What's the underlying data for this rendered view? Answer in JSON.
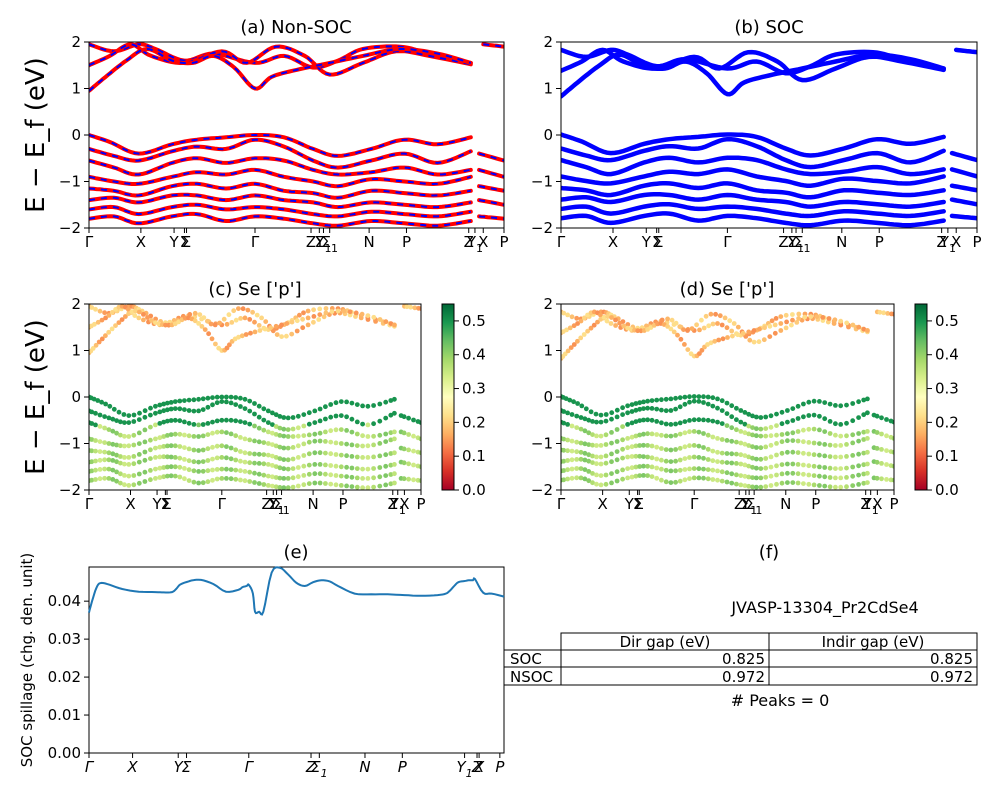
{
  "figure": {
    "ylabel_band": "E − E_f (eV)",
    "ylabel_spillage": "SOC spillage (chg. den. unit)"
  },
  "panels": {
    "a": {
      "title": "(a) Non-SOC"
    },
    "b": {
      "title": "(b) SOC"
    },
    "c": {
      "title": "(c)  Se ['p']"
    },
    "d": {
      "title": "(d) Se ['p']"
    },
    "e": {
      "title": "(e)"
    },
    "f": {
      "title": "(f)"
    }
  },
  "chart_data": [
    {
      "panel": "a",
      "type": "line",
      "title": "(a) Non-SOC",
      "ylim": [
        -2,
        2
      ],
      "yticks": [
        -2,
        -1,
        0,
        1,
        2
      ],
      "kpath": [
        "Γ",
        "X",
        "Y",
        "Σ",
        "Γ",
        "Z",
        "Σ1",
        "N",
        "P",
        "Y1",
        "Z",
        "X",
        "P"
      ],
      "xtick_labels": [
        {
          "x": 0.0,
          "t": "Γ"
        },
        {
          "x": 0.125,
          "t": "X"
        },
        {
          "x": 0.205,
          "t": "Y"
        },
        {
          "x": 0.23,
          "t": "Σ"
        },
        {
          "x": 0.235,
          "t": "Σ"
        },
        {
          "x": 0.4,
          "t": "Γ"
        },
        {
          "x": 0.535,
          "t": "Z"
        },
        {
          "x": 0.555,
          "t": "Σ"
        },
        {
          "x": 0.565,
          "t": "Y1"
        },
        {
          "x": 0.58,
          "t": "Σ1"
        },
        {
          "x": 0.675,
          "t": "N"
        },
        {
          "x": 0.765,
          "t": "P"
        },
        {
          "x": 0.915,
          "t": "Z"
        },
        {
          "x": 0.93,
          "t": "Y1"
        },
        {
          "x": 0.95,
          "t": "X"
        },
        {
          "x": 1.0,
          "t": "P"
        }
      ],
      "colors": {
        "up": "#0000ff",
        "down": "#ff0000"
      },
      "bands": [
        {
          "name": "c3",
          "pts": [
            [
              0,
              1.95
            ],
            [
              0.06,
              1.8
            ],
            [
              0.12,
              1.95
            ],
            [
              0.16,
              1.85
            ],
            [
              0.23,
              1.6
            ],
            [
              0.3,
              1.75
            ],
            [
              0.4,
              1.55
            ],
            [
              0.47,
              1.7
            ],
            [
              0.54,
              1.45
            ],
            [
              0.6,
              1.6
            ],
            [
              0.66,
              1.85
            ],
            [
              0.75,
              1.9
            ],
            [
              0.82,
              1.75
            ],
            [
              0.92,
              1.55
            ]
          ]
        },
        {
          "name": "c2",
          "pts": [
            [
              0,
              1.5
            ],
            [
              0.05,
              1.7
            ],
            [
              0.1,
              1.95
            ],
            [
              0.15,
              1.7
            ],
            [
              0.23,
              1.55
            ],
            [
              0.32,
              1.8
            ],
            [
              0.38,
              1.55
            ],
            [
              0.45,
              1.9
            ],
            [
              0.52,
              1.7
            ],
            [
              0.58,
              1.3
            ],
            [
              0.66,
              1.55
            ],
            [
              0.74,
              1.8
            ],
            [
              0.82,
              1.7
            ],
            [
              0.92,
              1.52
            ]
          ]
        },
        {
          "name": "c1",
          "pts": [
            [
              0,
              0.95
            ],
            [
              0.04,
              1.25
            ],
            [
              0.09,
              1.6
            ],
            [
              0.14,
              1.85
            ],
            [
              0.2,
              1.6
            ],
            [
              0.25,
              1.55
            ],
            [
              0.3,
              1.7
            ],
            [
              0.35,
              1.45
            ],
            [
              0.4,
              1.0
            ],
            [
              0.44,
              1.25
            ],
            [
              0.5,
              1.4
            ],
            [
              0.58,
              1.55
            ],
            [
              0.66,
              1.7
            ],
            [
              0.75,
              1.85
            ],
            [
              0.84,
              1.75
            ],
            [
              0.92,
              1.55
            ]
          ]
        },
        {
          "name": "c4",
          "pts": [
            [
              0.95,
              1.95
            ],
            [
              1.0,
              1.9
            ]
          ]
        },
        {
          "name": "v1",
          "pts": [
            [
              0,
              0.0
            ],
            [
              0.05,
              -0.15
            ],
            [
              0.12,
              -0.4
            ],
            [
              0.2,
              -0.2
            ],
            [
              0.26,
              -0.1
            ],
            [
              0.33,
              -0.05
            ],
            [
              0.4,
              0.0
            ],
            [
              0.47,
              -0.05
            ],
            [
              0.54,
              -0.3
            ],
            [
              0.6,
              -0.45
            ],
            [
              0.68,
              -0.3
            ],
            [
              0.76,
              -0.1
            ],
            [
              0.84,
              -0.2
            ],
            [
              0.92,
              -0.05
            ]
          ]
        },
        {
          "name": "v2",
          "pts": [
            [
              0,
              -0.3
            ],
            [
              0.06,
              -0.45
            ],
            [
              0.12,
              -0.55
            ],
            [
              0.2,
              -0.35
            ],
            [
              0.26,
              -0.25
            ],
            [
              0.33,
              -0.3
            ],
            [
              0.4,
              -0.1
            ],
            [
              0.47,
              -0.25
            ],
            [
              0.54,
              -0.55
            ],
            [
              0.6,
              -0.7
            ],
            [
              0.68,
              -0.55
            ],
            [
              0.76,
              -0.4
            ],
            [
              0.84,
              -0.6
            ],
            [
              0.92,
              -0.35
            ]
          ]
        },
        {
          "name": "v3",
          "pts": [
            [
              0,
              -0.55
            ],
            [
              0.06,
              -0.7
            ],
            [
              0.12,
              -0.85
            ],
            [
              0.2,
              -0.6
            ],
            [
              0.26,
              -0.5
            ],
            [
              0.33,
              -0.6
            ],
            [
              0.4,
              -0.5
            ],
            [
              0.47,
              -0.55
            ],
            [
              0.54,
              -0.75
            ],
            [
              0.6,
              -0.85
            ],
            [
              0.68,
              -0.8
            ],
            [
              0.76,
              -0.7
            ],
            [
              0.84,
              -0.85
            ],
            [
              0.92,
              -0.75
            ]
          ]
        },
        {
          "name": "v4",
          "pts": [
            [
              0,
              -0.9
            ],
            [
              0.06,
              -1.0
            ],
            [
              0.12,
              -1.05
            ],
            [
              0.2,
              -0.9
            ],
            [
              0.26,
              -0.8
            ],
            [
              0.33,
              -0.85
            ],
            [
              0.4,
              -0.75
            ],
            [
              0.47,
              -0.9
            ],
            [
              0.54,
              -1.0
            ],
            [
              0.6,
              -1.1
            ],
            [
              0.68,
              -0.95
            ],
            [
              0.76,
              -1.0
            ],
            [
              0.84,
              -1.05
            ],
            [
              0.92,
              -0.9
            ]
          ]
        },
        {
          "name": "v5",
          "pts": [
            [
              0,
              -1.15
            ],
            [
              0.06,
              -1.2
            ],
            [
              0.12,
              -1.3
            ],
            [
              0.2,
              -1.1
            ],
            [
              0.26,
              -1.05
            ],
            [
              0.33,
              -1.15
            ],
            [
              0.4,
              -1.05
            ],
            [
              0.47,
              -1.2
            ],
            [
              0.54,
              -1.25
            ],
            [
              0.6,
              -1.35
            ],
            [
              0.68,
              -1.2
            ],
            [
              0.76,
              -1.25
            ],
            [
              0.84,
              -1.3
            ],
            [
              0.92,
              -1.2
            ]
          ]
        },
        {
          "name": "v6",
          "pts": [
            [
              0,
              -1.4
            ],
            [
              0.06,
              -1.35
            ],
            [
              0.12,
              -1.45
            ],
            [
              0.2,
              -1.3
            ],
            [
              0.26,
              -1.3
            ],
            [
              0.33,
              -1.4
            ],
            [
              0.4,
              -1.3
            ],
            [
              0.47,
              -1.4
            ],
            [
              0.54,
              -1.45
            ],
            [
              0.6,
              -1.55
            ],
            [
              0.68,
              -1.45
            ],
            [
              0.76,
              -1.5
            ],
            [
              0.84,
              -1.55
            ],
            [
              0.92,
              -1.45
            ]
          ]
        },
        {
          "name": "v7",
          "pts": [
            [
              0,
              -1.6
            ],
            [
              0.06,
              -1.55
            ],
            [
              0.12,
              -1.7
            ],
            [
              0.2,
              -1.55
            ],
            [
              0.26,
              -1.5
            ],
            [
              0.33,
              -1.6
            ],
            [
              0.4,
              -1.55
            ],
            [
              0.47,
              -1.6
            ],
            [
              0.54,
              -1.7
            ],
            [
              0.6,
              -1.75
            ],
            [
              0.68,
              -1.65
            ],
            [
              0.76,
              -1.7
            ],
            [
              0.84,
              -1.75
            ],
            [
              0.92,
              -1.65
            ]
          ]
        },
        {
          "name": "v8",
          "pts": [
            [
              0,
              -1.8
            ],
            [
              0.06,
              -1.75
            ],
            [
              0.12,
              -1.9
            ],
            [
              0.2,
              -1.75
            ],
            [
              0.26,
              -1.7
            ],
            [
              0.33,
              -1.85
            ],
            [
              0.4,
              -1.75
            ],
            [
              0.47,
              -1.8
            ],
            [
              0.54,
              -1.9
            ],
            [
              0.6,
              -1.95
            ],
            [
              0.68,
              -1.85
            ],
            [
              0.76,
              -1.9
            ],
            [
              0.84,
              -1.95
            ],
            [
              0.92,
              -1.85
            ]
          ]
        },
        {
          "name": "v9",
          "pts": [
            [
              0.94,
              -0.4
            ],
            [
              1.0,
              -0.55
            ]
          ]
        },
        {
          "name": "v10",
          "pts": [
            [
              0.94,
              -0.75
            ],
            [
              1.0,
              -0.9
            ]
          ]
        },
        {
          "name": "v11",
          "pts": [
            [
              0.94,
              -1.1
            ],
            [
              1.0,
              -1.2
            ]
          ]
        },
        {
          "name": "v12",
          "pts": [
            [
              0.94,
              -1.4
            ],
            [
              1.0,
              -1.5
            ]
          ]
        },
        {
          "name": "v13",
          "pts": [
            [
              0.94,
              -1.75
            ],
            [
              1.0,
              -1.8
            ]
          ]
        }
      ]
    },
    {
      "panel": "b",
      "type": "line",
      "title": "(b) SOC",
      "ylim": [
        -2,
        2
      ],
      "yticks": [
        -2,
        -1,
        0,
        1,
        2
      ],
      "colors": {
        "band": "#0000ff"
      },
      "note": "same k-path as (a)"
    },
    {
      "panel": "c",
      "type": "scatter",
      "title": "(c)  Se ['p']",
      "ylim": [
        -2,
        2
      ],
      "yticks": [
        -2,
        -1,
        0,
        1,
        2
      ],
      "colorbar": {
        "min": 0.0,
        "max": 0.55,
        "ticks": [
          0.0,
          0.1,
          0.2,
          0.3,
          0.4,
          0.5
        ],
        "cmap": "RdYlGn"
      }
    },
    {
      "panel": "d",
      "type": "scatter",
      "title": "(d) Se ['p']",
      "ylim": [
        -2,
        2
      ],
      "yticks": [
        -2,
        -1,
        0,
        1,
        2
      ],
      "colorbar": {
        "min": 0.0,
        "max": 0.55,
        "ticks": [
          0.0,
          0.1,
          0.2,
          0.3,
          0.4,
          0.5
        ],
        "cmap": "RdYlGn"
      }
    },
    {
      "panel": "e",
      "type": "line",
      "title": "(e)",
      "ylabel": "SOC spillage (chg. den. unit)",
      "ylim": [
        0.0,
        0.049
      ],
      "yticks": [
        0.0,
        0.01,
        0.02,
        0.03,
        0.04
      ],
      "xtick_labels": [
        {
          "x": 0.0,
          "t": "Γ"
        },
        {
          "x": 0.105,
          "t": "X"
        },
        {
          "x": 0.215,
          "t": "Y"
        },
        {
          "x": 0.235,
          "t": "Σ"
        },
        {
          "x": 0.385,
          "t": "Γ"
        },
        {
          "x": 0.535,
          "t": "Z"
        },
        {
          "x": 0.555,
          "t": "Σ1"
        },
        {
          "x": 0.665,
          "t": "N"
        },
        {
          "x": 0.755,
          "t": "P"
        },
        {
          "x": 0.905,
          "t": "Y1"
        },
        {
          "x": 0.935,
          "t": "Z"
        },
        {
          "x": 0.94,
          "t": "X"
        },
        {
          "x": 0.99,
          "t": "P"
        }
      ],
      "series": [
        {
          "x": [
            0,
            0.01,
            0.02,
            0.03,
            0.05,
            0.08,
            0.12,
            0.16,
            0.18,
            0.2,
            0.21,
            0.22,
            0.24,
            0.25,
            0.27,
            0.3,
            0.33,
            0.36,
            0.37,
            0.38,
            0.385,
            0.395,
            0.4,
            0.41,
            0.42,
            0.44,
            0.46,
            0.48,
            0.5,
            0.52,
            0.54,
            0.56,
            0.58,
            0.6,
            0.64,
            0.68,
            0.72,
            0.76,
            0.8,
            0.84,
            0.86,
            0.87,
            0.88,
            0.89,
            0.905,
            0.915,
            0.925,
            0.93,
            0.95,
            0.97,
            1.0
          ],
          "y": [
            0.037,
            0.041,
            0.044,
            0.0448,
            0.0443,
            0.0432,
            0.0425,
            0.0424,
            0.0423,
            0.0424,
            0.0432,
            0.0444,
            0.0452,
            0.0455,
            0.0456,
            0.0445,
            0.0425,
            0.043,
            0.0437,
            0.044,
            0.0443,
            0.042,
            0.0372,
            0.0372,
            0.0372,
            0.0475,
            0.0488,
            0.047,
            0.0448,
            0.044,
            0.045,
            0.0455,
            0.0452,
            0.044,
            0.042,
            0.0418,
            0.0418,
            0.0416,
            0.0414,
            0.0416,
            0.042,
            0.0428,
            0.044,
            0.045,
            0.0453,
            0.0455,
            0.0455,
            0.0458,
            0.0422,
            0.042,
            0.0412
          ]
        }
      ],
      "colors": {
        "line": "#1f77b4"
      }
    },
    {
      "panel": "f",
      "type": "table",
      "title": "(f)",
      "label": "JVASP-13304_Pr2CdSe4",
      "columns": [
        "Dir gap (eV)",
        "Indir gap (eV)"
      ],
      "rows": [
        {
          "name": "SOC",
          "dir": "0.825",
          "indir": "0.825"
        },
        {
          "name": "NSOC",
          "dir": "0.972",
          "indir": "0.972"
        }
      ],
      "footer": "# Peaks = 0"
    }
  ]
}
